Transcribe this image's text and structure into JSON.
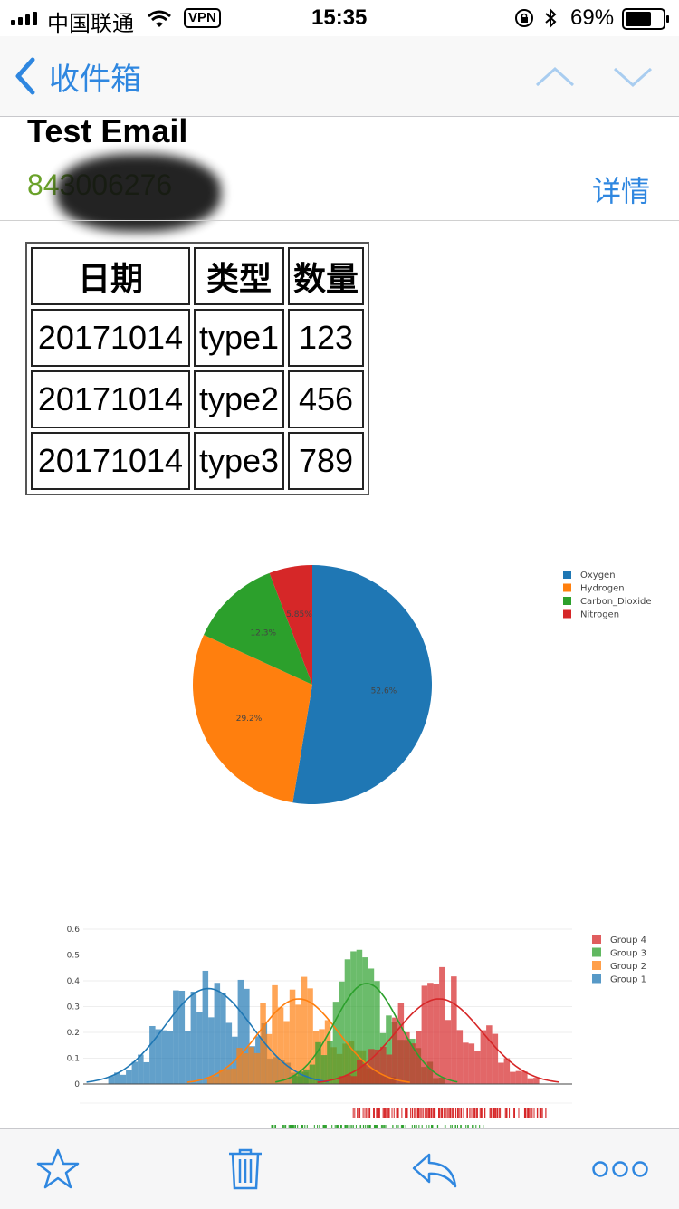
{
  "status_bar": {
    "carrier": "中国联通",
    "vpn": "VPN",
    "time": "15:35",
    "battery": "69%"
  },
  "nav": {
    "back_label": "收件箱"
  },
  "email": {
    "subject": "Test Email",
    "sender": "843006276",
    "details_label": "详情"
  },
  "table": {
    "headers": [
      "日期",
      "类型",
      "数量"
    ],
    "rows": [
      [
        "20171014",
        "type1",
        "123"
      ],
      [
        "20171014",
        "type2",
        "456"
      ],
      [
        "20171014",
        "type3",
        "789"
      ]
    ]
  },
  "chart_data": [
    {
      "type": "pie",
      "labels": [
        "Oxygen",
        "Hydrogen",
        "Carbon_Dioxide",
        "Nitrogen"
      ],
      "values": [
        52.6,
        29.2,
        12.3,
        5.85
      ],
      "value_labels": [
        "52.6%",
        "29.2%",
        "12.3%",
        "5.85%"
      ],
      "colors": [
        "#1f77b4",
        "#ff7f0e",
        "#2ca02c",
        "#d62728"
      ],
      "legend": "right"
    },
    {
      "type": "bar",
      "subtype": "histogram with density curves and rug plot",
      "ylim": [
        0,
        0.6
      ],
      "yticks": [
        "0",
        "0.1",
        "0.2",
        "0.3",
        "0.4",
        "0.5",
        "0.6"
      ],
      "legend": "top-right",
      "series": [
        {
          "name": "Group 4",
          "color": "#d62728",
          "peak_y": 0.33
        },
        {
          "name": "Group 3",
          "color": "#2ca02c",
          "peak_y": 0.39
        },
        {
          "name": "Group 2",
          "color": "#ff7f0e",
          "peak_y": 0.33
        },
        {
          "name": "Group 1",
          "color": "#1f77b4",
          "peak_y": 0.37
        }
      ]
    }
  ],
  "toolbar": {
    "icons": [
      "star-icon",
      "trash-icon",
      "reply-icon",
      "more-icon"
    ]
  },
  "colors": {
    "accent": "#2f87e0",
    "sender": "#6aa22a"
  }
}
